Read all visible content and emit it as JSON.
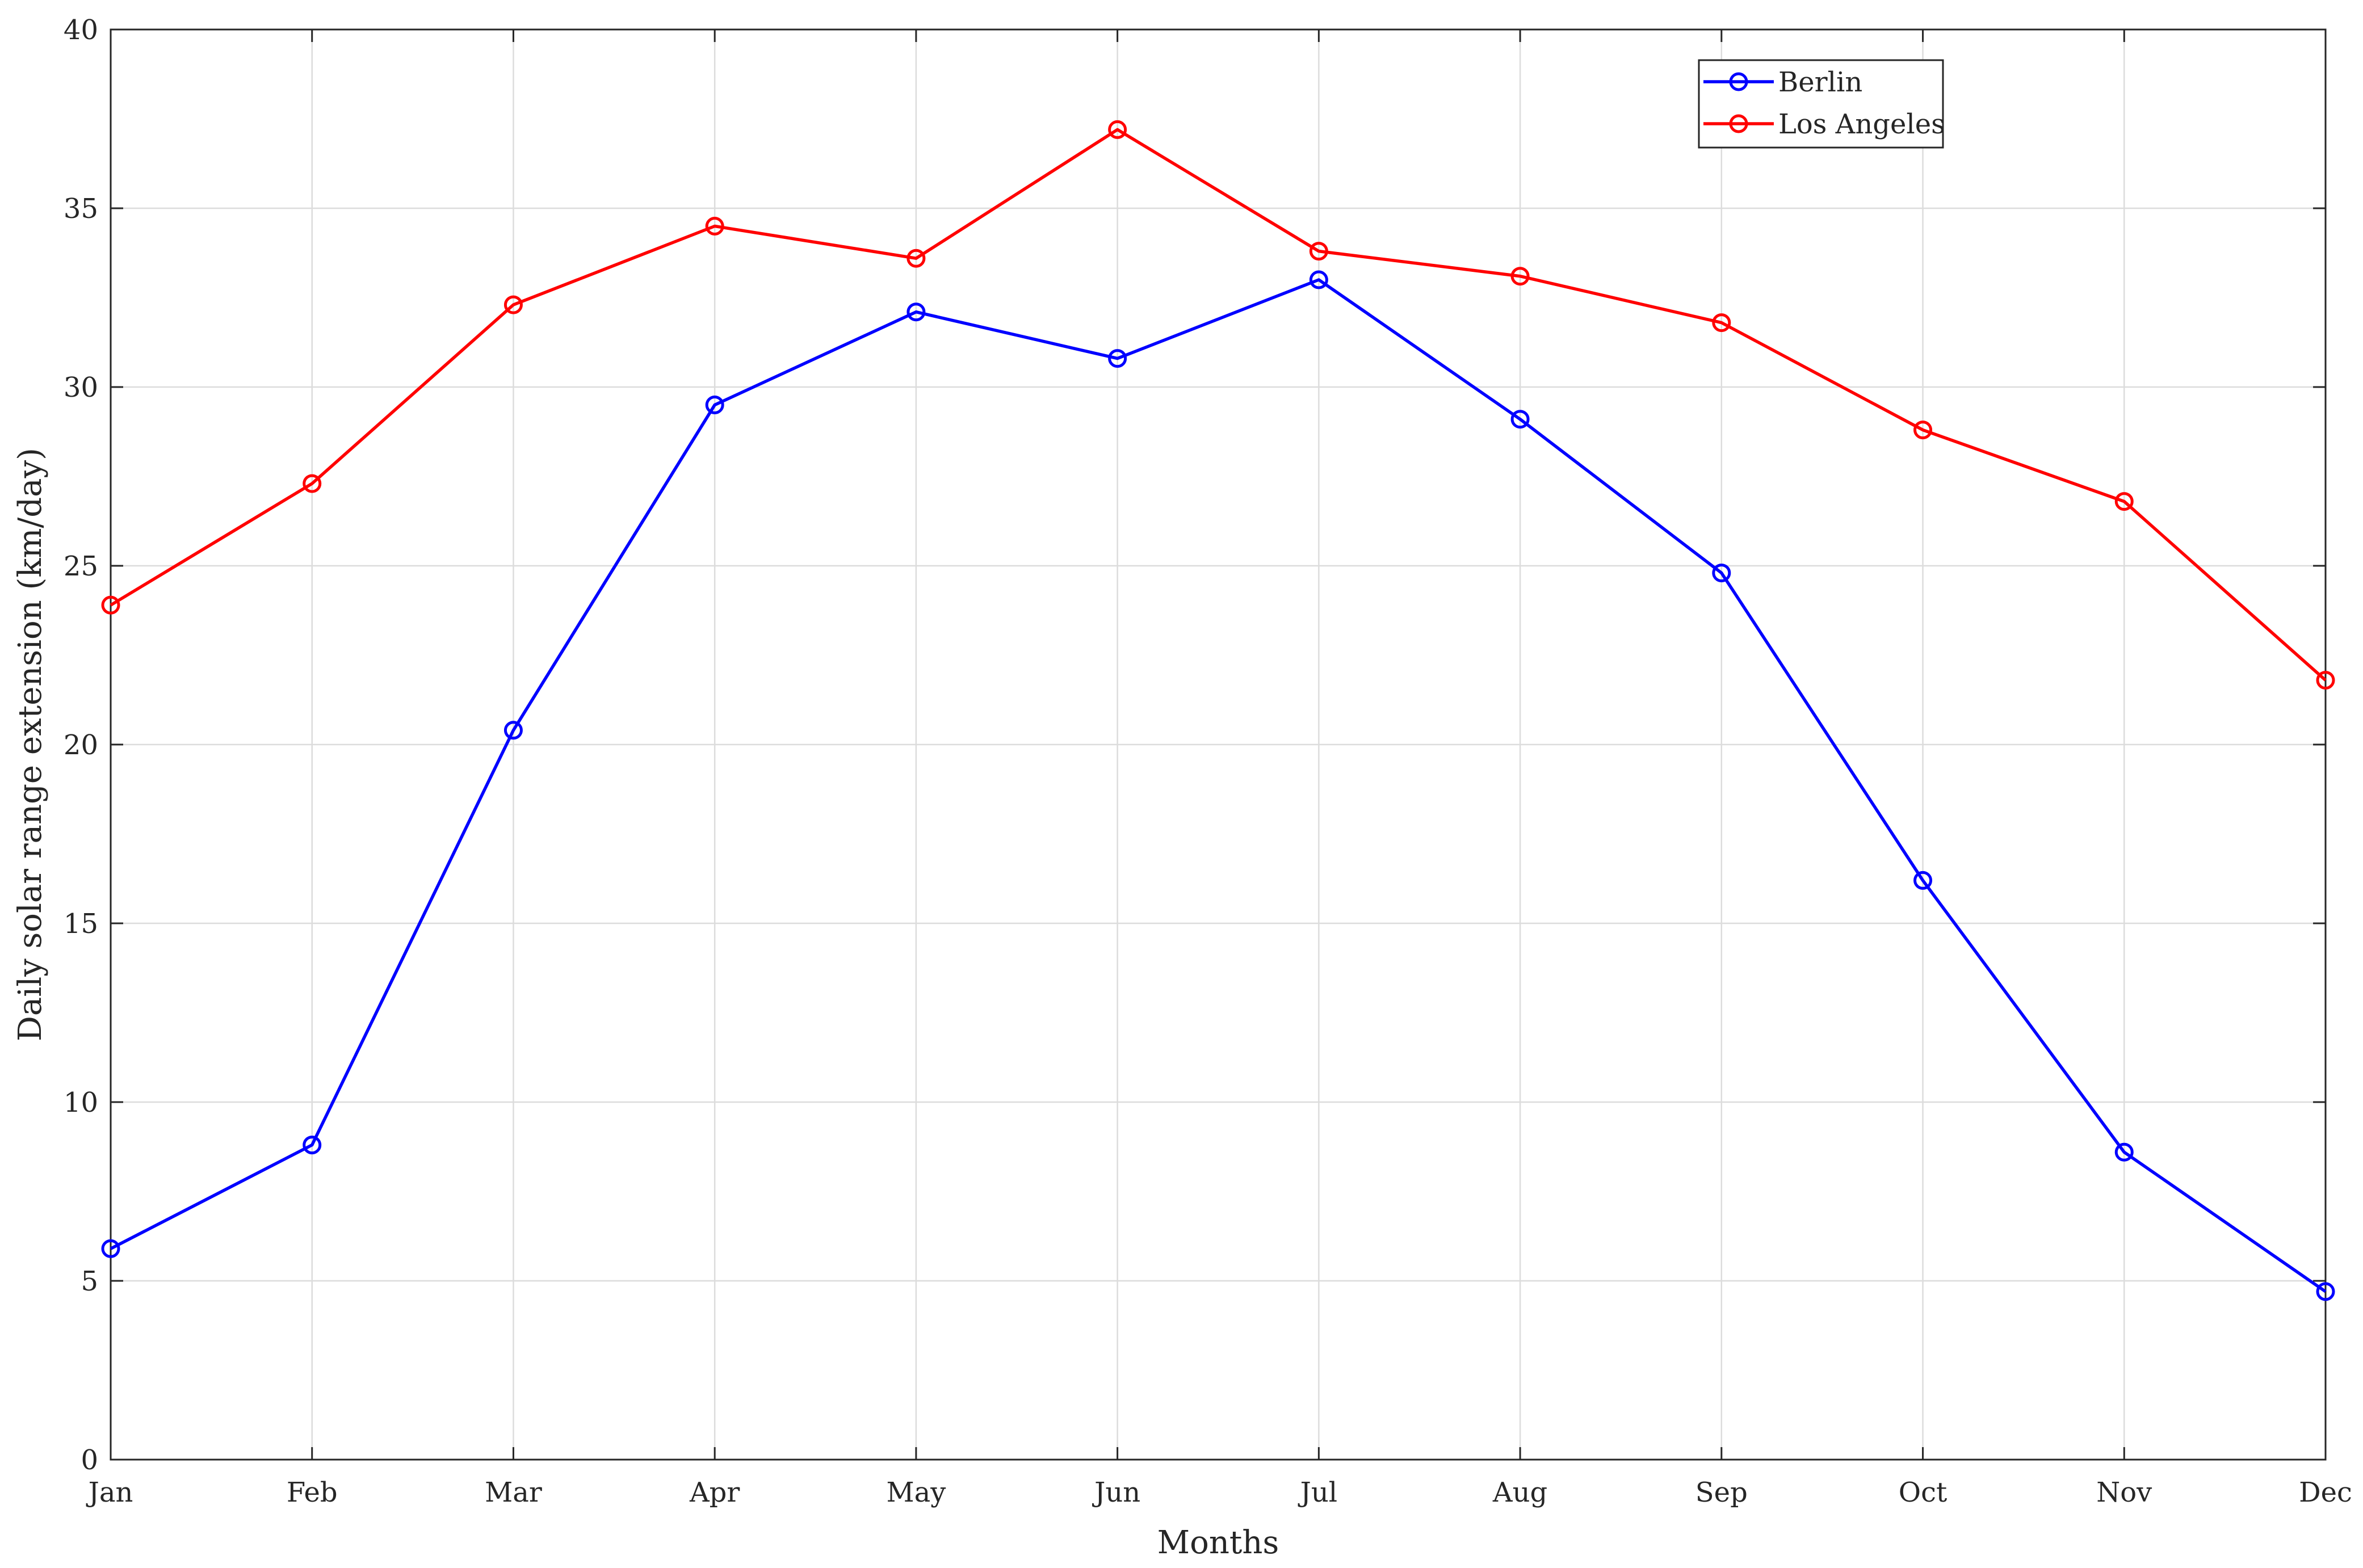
{
  "chart_data": {
    "type": "line",
    "title": "",
    "xlabel": "Months",
    "ylabel": "Daily solar range extension (km/day)",
    "categories": [
      "Jan",
      "Feb",
      "Mar",
      "Apr",
      "May",
      "Jun",
      "Jul",
      "Aug",
      "Sep",
      "Oct",
      "Nov",
      "Dec"
    ],
    "ylim": [
      0,
      40
    ],
    "yticks": [
      0,
      5,
      10,
      15,
      20,
      25,
      30,
      35,
      40
    ],
    "grid": true,
    "legend_position": "top-right",
    "marker": "circle",
    "series": [
      {
        "name": "Berlin",
        "color": "#0000ff",
        "values": [
          5.9,
          8.8,
          20.4,
          29.5,
          32.1,
          30.8,
          33.0,
          29.1,
          24.8,
          16.2,
          8.6,
          4.7
        ]
      },
      {
        "name": "Los Angeles",
        "color": "#ff0000",
        "values": [
          23.9,
          27.3,
          32.3,
          34.5,
          33.6,
          37.2,
          33.8,
          33.1,
          31.8,
          28.8,
          26.8,
          21.8
        ]
      }
    ]
  }
}
